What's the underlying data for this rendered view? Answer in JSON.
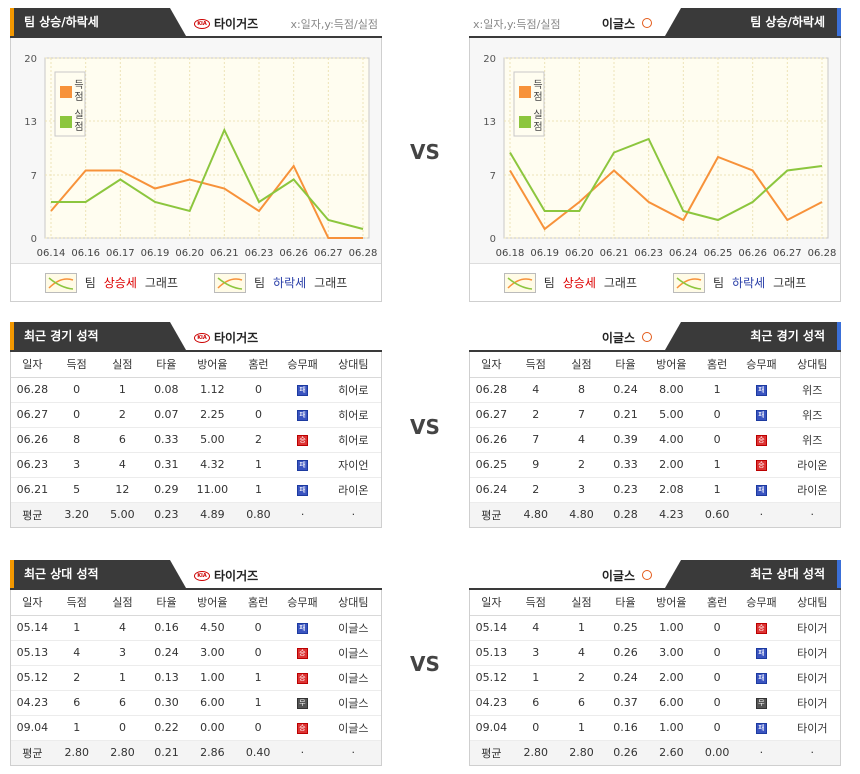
{
  "vs_label": "VS",
  "axis_note": "x:일자,y:득점/실점",
  "team_left": "타이거즈",
  "team_right": "이글스",
  "trend": {
    "title": "팀 상승/하락세",
    "legend_up_prefix": "팀",
    "legend_up_word": "상승세",
    "legend_up_suffix": "그래프",
    "legend_down_prefix": "팀",
    "legend_down_word": "하락세",
    "legend_down_suffix": "그래프"
  },
  "recent_title": "최근 경기 성적",
  "h2h_title": "최근 상대 성적",
  "table_headers": [
    "일자",
    "득점",
    "실점",
    "타율",
    "방어율",
    "홈런",
    "승무패",
    "상대팀"
  ],
  "result_glyphs": {
    "W": "승",
    "L": "패",
    "D": "무"
  },
  "colors": {
    "scored": "#f7923a",
    "allowed": "#8cc63e",
    "tab_bg": "#3a3a3a",
    "tab_left_accent": "#f39800",
    "tab_right_accent": "#3a6fd8"
  },
  "chart_data": [
    {
      "type": "line",
      "x": [
        "06.14",
        "06.16",
        "06.17",
        "06.19",
        "06.20",
        "06.21",
        "06.23",
        "06.26",
        "06.27",
        "06.28"
      ],
      "series": [
        {
          "name": "득점",
          "values": [
            3,
            7.5,
            7.5,
            5.5,
            6.5,
            5.5,
            3,
            8,
            0,
            0
          ]
        },
        {
          "name": "실점",
          "values": [
            4,
            4,
            6.5,
            4,
            3,
            12,
            4,
            6.5,
            2,
            1
          ]
        }
      ],
      "yticks": [
        0,
        7,
        13,
        20
      ],
      "ylim": [
        0,
        20
      ],
      "legend": "top-left",
      "grid": true
    },
    {
      "type": "line",
      "x": [
        "06.18",
        "06.19",
        "06.20",
        "06.21",
        "06.23",
        "06.24",
        "06.25",
        "06.26",
        "06.27",
        "06.28"
      ],
      "series": [
        {
          "name": "득점",
          "values": [
            7.5,
            1,
            4,
            7.5,
            4,
            2,
            9,
            7.5,
            2,
            4
          ]
        },
        {
          "name": "실점",
          "values": [
            9.5,
            3,
            3,
            9.5,
            11,
            3,
            2,
            4,
            7.5,
            8
          ]
        }
      ],
      "yticks": [
        0,
        7,
        13,
        20
      ],
      "ylim": [
        0,
        20
      ],
      "legend": "top-left",
      "grid": true
    }
  ],
  "recent_left": {
    "rows": [
      [
        "06.28",
        "0",
        "1",
        "0.08",
        "1.12",
        "0",
        "L",
        "히어로"
      ],
      [
        "06.27",
        "0",
        "2",
        "0.07",
        "2.25",
        "0",
        "L",
        "히어로"
      ],
      [
        "06.26",
        "8",
        "6",
        "0.33",
        "5.00",
        "2",
        "W",
        "히어로"
      ],
      [
        "06.23",
        "3",
        "4",
        "0.31",
        "4.32",
        "1",
        "L",
        "자이언"
      ],
      [
        "06.21",
        "5",
        "12",
        "0.29",
        "11.00",
        "1",
        "L",
        "라이온"
      ]
    ],
    "avg": [
      "평균",
      "3.20",
      "5.00",
      "0.23",
      "4.89",
      "0.80",
      "·",
      "·"
    ]
  },
  "recent_right": {
    "rows": [
      [
        "06.28",
        "4",
        "8",
        "0.24",
        "8.00",
        "1",
        "L",
        "위즈"
      ],
      [
        "06.27",
        "2",
        "7",
        "0.21",
        "5.00",
        "0",
        "L",
        "위즈"
      ],
      [
        "06.26",
        "7",
        "4",
        "0.39",
        "4.00",
        "0",
        "W",
        "위즈"
      ],
      [
        "06.25",
        "9",
        "2",
        "0.33",
        "2.00",
        "1",
        "W",
        "라이온"
      ],
      [
        "06.24",
        "2",
        "3",
        "0.23",
        "2.08",
        "1",
        "L",
        "라이온"
      ]
    ],
    "avg": [
      "평균",
      "4.80",
      "4.80",
      "0.28",
      "4.23",
      "0.60",
      "·",
      "·"
    ]
  },
  "h2h_left": {
    "rows": [
      [
        "05.14",
        "1",
        "4",
        "0.16",
        "4.50",
        "0",
        "L",
        "이글스"
      ],
      [
        "05.13",
        "4",
        "3",
        "0.24",
        "3.00",
        "0",
        "W",
        "이글스"
      ],
      [
        "05.12",
        "2",
        "1",
        "0.13",
        "1.00",
        "1",
        "W",
        "이글스"
      ],
      [
        "04.23",
        "6",
        "6",
        "0.30",
        "6.00",
        "1",
        "D",
        "이글스"
      ],
      [
        "09.04",
        "1",
        "0",
        "0.22",
        "0.00",
        "0",
        "W",
        "이글스"
      ]
    ],
    "avg": [
      "평균",
      "2.80",
      "2.80",
      "0.21",
      "2.86",
      "0.40",
      "·",
      "·"
    ]
  },
  "h2h_right": {
    "rows": [
      [
        "05.14",
        "4",
        "1",
        "0.25",
        "1.00",
        "0",
        "W",
        "타이거"
      ],
      [
        "05.13",
        "3",
        "4",
        "0.26",
        "3.00",
        "0",
        "L",
        "타이거"
      ],
      [
        "05.12",
        "1",
        "2",
        "0.24",
        "2.00",
        "0",
        "L",
        "타이거"
      ],
      [
        "04.23",
        "6",
        "6",
        "0.37",
        "6.00",
        "0",
        "D",
        "타이거"
      ],
      [
        "09.04",
        "0",
        "1",
        "0.16",
        "1.00",
        "0",
        "L",
        "타이거"
      ]
    ],
    "avg": [
      "평균",
      "2.80",
      "2.80",
      "0.26",
      "2.60",
      "0.00",
      "·",
      "·"
    ]
  }
}
